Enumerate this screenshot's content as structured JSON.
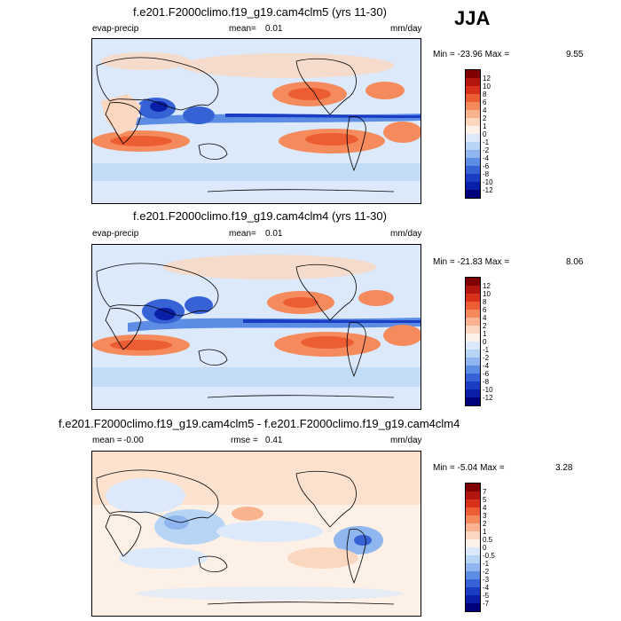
{
  "season": "JJA",
  "panels": [
    {
      "title": "f.e201.F2000climo.f19_g19.cam4clm5 (yrs 11-30)",
      "left_label": "evap-precip",
      "mean_label": "mean=",
      "mean_value": "0.01",
      "units": "mm/day",
      "min_label": "Min = -23.96 Max =",
      "max_value": "9.55",
      "colorbar": {
        "ticks": [
          "12",
          "10",
          "8",
          "6",
          "4",
          "2",
          "1",
          "0",
          "-1",
          "-2",
          "-4",
          "-6",
          "-8",
          "-10",
          "-12"
        ],
        "colors": [
          "#7f0000",
          "#b2160e",
          "#d8311b",
          "#ec5d34",
          "#f58a5c",
          "#f9b38f",
          "#fbd7c0",
          "#fdf0e6",
          "#dbe9fb",
          "#b8d4f5",
          "#8fb6ee",
          "#5d8ce4",
          "#3662d6",
          "#1a3dc4",
          "#0a1fa8",
          "#00007a"
        ]
      }
    },
    {
      "title": "f.e201.F2000climo.f19_g19.cam4clm4 (yrs 11-30)",
      "left_label": "evap-precip",
      "mean_label": "mean=",
      "mean_value": "0.01",
      "units": "mm/day",
      "min_label": "Min = -21.83 Max =",
      "max_value": "8.06",
      "colorbar": {
        "ticks": [
          "12",
          "10",
          "8",
          "6",
          "4",
          "2",
          "1",
          "0",
          "-1",
          "-2",
          "-4",
          "-6",
          "-8",
          "-10",
          "-12"
        ],
        "colors": [
          "#7f0000",
          "#b2160e",
          "#d8311b",
          "#ec5d34",
          "#f58a5c",
          "#f9b38f",
          "#fbd7c0",
          "#fdf0e6",
          "#dbe9fb",
          "#b8d4f5",
          "#8fb6ee",
          "#5d8ce4",
          "#3662d6",
          "#1a3dc4",
          "#0a1fa8",
          "#00007a"
        ]
      }
    },
    {
      "title": "f.e201.F2000climo.f19_g19.cam4clm5 - f.e201.F2000climo.f19_g19.cam4clm4",
      "mean_label": "mean =",
      "mean_value": "-0.00",
      "rmse_label": "rmse =",
      "rmse_value": "0.41",
      "units": "mm/day",
      "min_label": "Min = -5.04 Max =",
      "max_value": "3.28",
      "colorbar": {
        "ticks": [
          "7",
          "5",
          "4",
          "3",
          "2",
          "1",
          "0.5",
          "0",
          "-0.5",
          "-1",
          "-2",
          "-3",
          "-4",
          "-5",
          "-7"
        ],
        "colors": [
          "#7f0000",
          "#b2160e",
          "#d8311b",
          "#ec5d34",
          "#f58a5c",
          "#f9b38f",
          "#fbd7c0",
          "#fdf0e6",
          "#dbe9fb",
          "#b8d4f5",
          "#8fb6ee",
          "#5d8ce4",
          "#3662d6",
          "#1a3dc4",
          "#0a1fa8",
          "#00007a"
        ]
      }
    }
  ]
}
